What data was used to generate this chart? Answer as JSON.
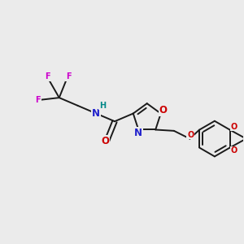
{
  "background_color": "#ebebeb",
  "bond_color": "#1a1a1a",
  "bond_width": 1.4,
  "atom_colors": {
    "F": "#cc00cc",
    "N": "#2020cc",
    "O": "#cc0000",
    "H": "#008888"
  },
  "font_size_main": 8.5,
  "font_size_small": 7.0,
  "figsize": [
    3.0,
    3.0
  ],
  "dpi": 100
}
